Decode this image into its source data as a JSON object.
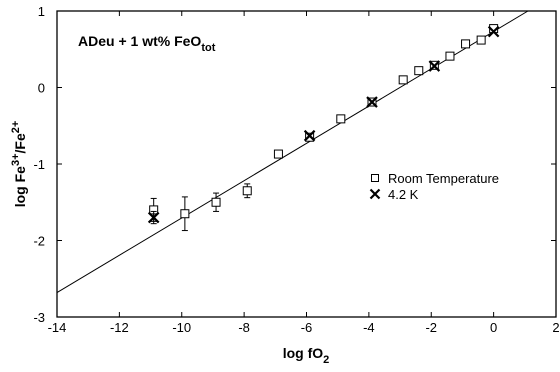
{
  "chart_data": {
    "type": "scatter",
    "annotation": {
      "main": "ADeu + 1 wt% FeO",
      "sub": "tot"
    },
    "xlabel": {
      "main": "log fO",
      "sub": "2"
    },
    "ylabel": {
      "main": "log Fe",
      "sup1": "3+",
      "mid": "/Fe",
      "sup2": "2+"
    },
    "xlim": [
      -14,
      2
    ],
    "ylim": [
      -3,
      1
    ],
    "xticks": [
      -14,
      -12,
      -10,
      -8,
      -6,
      -4,
      -2,
      0,
      2
    ],
    "yticks": [
      -3,
      -2,
      -1,
      0,
      1
    ],
    "xtick_labels": [
      "-14",
      "-12",
      "-10",
      "-8",
      "-6",
      "-4",
      "-2",
      "0",
      "2"
    ],
    "ytick_labels": [
      "-3",
      "-2",
      "-1",
      "0",
      "1"
    ],
    "fit_line": {
      "x": [
        -14,
        1.1
      ],
      "y": [
        -2.68,
        1.0
      ]
    },
    "legend": {
      "placement": "right",
      "entries": [
        "Room Temperature",
        "4.2 K"
      ]
    },
    "series": [
      {
        "name": "Room Temperature",
        "marker": "square",
        "points": [
          {
            "x": -10.9,
            "y": -1.6,
            "err": 0.15
          },
          {
            "x": -9.9,
            "y": -1.65,
            "err": 0.22
          },
          {
            "x": -8.9,
            "y": -1.5,
            "err": 0.12
          },
          {
            "x": -7.9,
            "y": -1.35,
            "err": 0.09
          },
          {
            "x": -6.9,
            "y": -0.87,
            "err": 0
          },
          {
            "x": -5.9,
            "y": -0.65,
            "err": 0
          },
          {
            "x": -4.9,
            "y": -0.41,
            "err": 0
          },
          {
            "x": -3.9,
            "y": -0.19,
            "err": 0
          },
          {
            "x": -2.9,
            "y": 0.1,
            "err": 0
          },
          {
            "x": -2.4,
            "y": 0.22,
            "err": 0
          },
          {
            "x": -1.9,
            "y": 0.29,
            "err": 0
          },
          {
            "x": -1.4,
            "y": 0.41,
            "err": 0
          },
          {
            "x": -0.9,
            "y": 0.57,
            "err": 0
          },
          {
            "x": -0.4,
            "y": 0.62,
            "err": 0
          },
          {
            "x": 0.0,
            "y": 0.77,
            "err": 0
          }
        ]
      },
      {
        "name": "4.2 K",
        "marker": "x",
        "points": [
          {
            "x": -10.9,
            "y": -1.7,
            "err": 0.08
          },
          {
            "x": -5.9,
            "y": -0.63,
            "err": 0
          },
          {
            "x": -3.9,
            "y": -0.19,
            "err": 0
          },
          {
            "x": -1.9,
            "y": 0.28,
            "err": 0
          },
          {
            "x": 0.0,
            "y": 0.73,
            "err": 0
          }
        ]
      }
    ]
  }
}
